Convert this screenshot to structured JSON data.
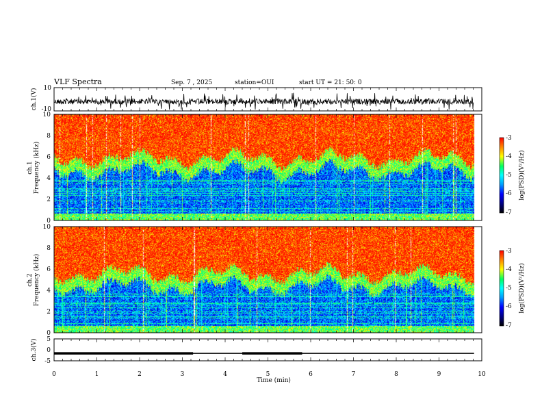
{
  "header": {
    "title": "VLF Spectra",
    "date": "Sep. 7 , 2025",
    "station": "station=OUI",
    "start": "start  UT =   21: 50: 0"
  },
  "chart_data": [
    {
      "type": "line",
      "name": "ch1-waveform",
      "ylabel": "ch.1(V)",
      "ylim": [
        -10,
        10
      ],
      "yticks": [
        "10",
        "-10"
      ]
    },
    {
      "type": "heatmap",
      "name": "ch1-spectrogram",
      "ylabel": "ch.1\nFrequency (kHz)",
      "ylabel_line1": "ch.1",
      "ylabel_line2": "Frequency  (kHz)",
      "ylim": [
        0,
        10
      ],
      "yticks": [
        "0",
        "2",
        "4",
        "6",
        "8",
        "10"
      ],
      "colorbar": {
        "label": "log(PSD)(V²/Hz)",
        "ticks": [
          "-3",
          "-4",
          "-5",
          "-6",
          "-7"
        ],
        "range": [
          -7,
          -3
        ]
      }
    },
    {
      "type": "heatmap",
      "name": "ch2-spectrogram",
      "ylabel_line1": "ch.2",
      "ylabel_line2": "Frequency  (kHz)",
      "ylim": [
        0,
        10
      ],
      "yticks": [
        "0",
        "2",
        "4",
        "6",
        "8",
        "10"
      ],
      "colorbar": {
        "label": "log(PSD)(V²/Hz)",
        "ticks": [
          "-3",
          "-4",
          "-5",
          "-6",
          "-7"
        ],
        "range": [
          -7,
          -3
        ]
      }
    },
    {
      "type": "line",
      "name": "ch3-signal",
      "ylabel": "ch.3(V)",
      "ylim": [
        -5,
        5
      ],
      "yticks": [
        "5",
        "0",
        "-5"
      ],
      "segments": [
        [
          0,
          3.25
        ],
        [
          4.4,
          5.8
        ]
      ]
    }
  ],
  "xaxis": {
    "label": "Time  (min)",
    "range": [
      0,
      10
    ],
    "ticks": [
      "0",
      "1",
      "2",
      "3",
      "4",
      "5",
      "6",
      "7",
      "8",
      "9",
      "10"
    ],
    "data_end": 9.82
  }
}
